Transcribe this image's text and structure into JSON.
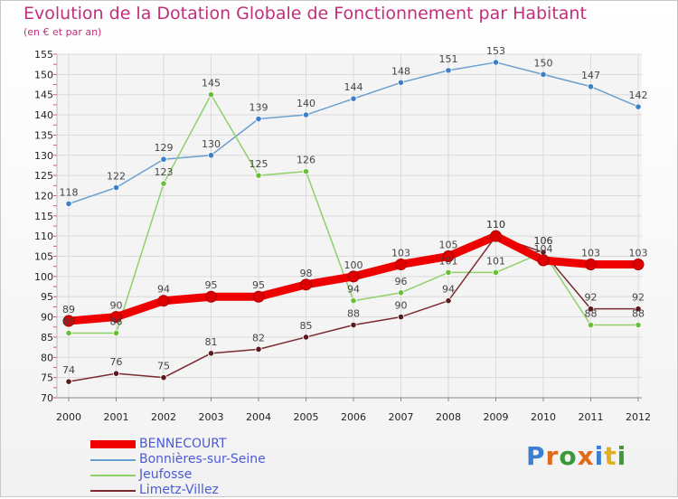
{
  "header": {
    "title": "Evolution de la Dotation Globale de Fonctionnement par Habitant",
    "subtitle": "(en € et par an)"
  },
  "logo": {
    "text": "Proxiti",
    "colors": [
      "#3a7fd0",
      "#e06c1a",
      "#3a9a3a",
      "#e06c1a",
      "#3a7fd0",
      "#e0b020",
      "#3a9a3a"
    ]
  },
  "chart_data": {
    "type": "line",
    "title": "Evolution de la Dotation Globale de Fonctionnement par Habitant",
    "ylabel": "(en € et par an)",
    "xlabel": "",
    "ylim": [
      70,
      155
    ],
    "yticks": [
      70,
      75,
      80,
      85,
      90,
      95,
      100,
      105,
      110,
      115,
      120,
      125,
      130,
      135,
      140,
      145,
      150,
      155
    ],
    "categories": [
      "2000",
      "2001",
      "2002",
      "2003",
      "2004",
      "2005",
      "2006",
      "2007",
      "2008",
      "2009",
      "2010",
      "2011",
      "2012"
    ],
    "grid": true,
    "legend": "bottom-left",
    "series": [
      {
        "name": "Bonnières-sur-Seine",
        "color": "#6a9fd0",
        "marker": "#3a7fc8",
        "weight": "thin",
        "values": [
          118,
          122,
          129,
          130,
          139,
          140,
          144,
          148,
          151,
          153,
          150,
          147,
          142
        ]
      },
      {
        "name": "Jeufosse",
        "color": "#8fd06a",
        "marker": "#6abf3a",
        "weight": "thin",
        "values": [
          86,
          86,
          123,
          145,
          125,
          126,
          94,
          96,
          101,
          101,
          106,
          88,
          88
        ]
      },
      {
        "name": "Limetz-Villez",
        "color": "#7a2a30",
        "marker": "#5a1a20",
        "weight": "thin",
        "values": [
          74,
          76,
          75,
          81,
          82,
          85,
          88,
          90,
          94,
          110,
          106,
          92,
          92
        ]
      },
      {
        "name": "BENNECOURT",
        "color": "#ee0000",
        "marker": "#dd0000",
        "weight": "thick",
        "values": [
          89,
          90,
          94,
          95,
          95,
          98,
          100,
          103,
          105,
          110,
          104,
          103,
          103
        ]
      }
    ],
    "legend_order": [
      "BENNECOURT",
      "Bonnières-sur-Seine",
      "Jeufosse",
      "Limetz-Villez"
    ]
  }
}
